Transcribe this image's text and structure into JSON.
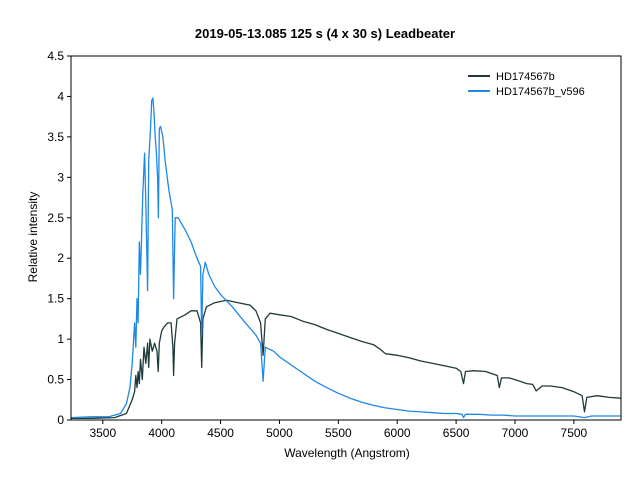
{
  "chart_data": {
    "type": "line",
    "title": "2019-05-13.085   125 s (4 x 30 s)   Leadbeater",
    "xlabel": "Wavelength (Angstrom)",
    "ylabel": "Relative intensity",
    "xlim": [
      3230,
      7900
    ],
    "ylim": [
      0,
      4.5
    ],
    "x_ticks": [
      "3500",
      "4000",
      "4500",
      "5000",
      "5500",
      "6000",
      "6500",
      "7000",
      "7500"
    ],
    "y_ticks": [
      "0",
      "0.5",
      "1",
      "1.5",
      "2",
      "2.5",
      "3",
      "3.5",
      "4",
      "4.5"
    ],
    "legend_position": "top-right",
    "grid": false,
    "series": [
      {
        "name": "HD174567b",
        "color": "#1f3a3a",
        "points": [
          [
            3230,
            0.02
          ],
          [
            3400,
            0.02
          ],
          [
            3600,
            0.03
          ],
          [
            3700,
            0.08
          ],
          [
            3750,
            0.25
          ],
          [
            3770,
            0.35
          ],
          [
            3780,
            0.55
          ],
          [
            3790,
            0.4
          ],
          [
            3800,
            0.6
          ],
          [
            3810,
            0.45
          ],
          [
            3820,
            0.75
          ],
          [
            3835,
            0.5
          ],
          [
            3850,
            0.9
          ],
          [
            3865,
            0.7
          ],
          [
            3880,
            0.95
          ],
          [
            3890,
            0.65
          ],
          [
            3900,
            1.0
          ],
          [
            3920,
            0.85
          ],
          [
            3940,
            0.95
          ],
          [
            3960,
            0.85
          ],
          [
            3970,
            0.6
          ],
          [
            3980,
            0.95
          ],
          [
            4000,
            1.1
          ],
          [
            4020,
            1.15
          ],
          [
            4050,
            1.2
          ],
          [
            4080,
            1.2
          ],
          [
            4095,
            0.9
          ],
          [
            4101,
            0.55
          ],
          [
            4110,
            0.95
          ],
          [
            4130,
            1.25
          ],
          [
            4200,
            1.3
          ],
          [
            4250,
            1.35
          ],
          [
            4300,
            1.35
          ],
          [
            4330,
            1.2
          ],
          [
            4340,
            0.65
          ],
          [
            4350,
            1.25
          ],
          [
            4380,
            1.4
          ],
          [
            4450,
            1.45
          ],
          [
            4550,
            1.48
          ],
          [
            4650,
            1.45
          ],
          [
            4750,
            1.42
          ],
          [
            4800,
            1.35
          ],
          [
            4840,
            1.2
          ],
          [
            4861,
            0.8
          ],
          [
            4880,
            1.25
          ],
          [
            4920,
            1.32
          ],
          [
            5000,
            1.3
          ],
          [
            5100,
            1.28
          ],
          [
            5200,
            1.22
          ],
          [
            5300,
            1.18
          ],
          [
            5400,
            1.12
          ],
          [
            5500,
            1.07
          ],
          [
            5600,
            1.02
          ],
          [
            5700,
            0.97
          ],
          [
            5800,
            0.93
          ],
          [
            5850,
            0.88
          ],
          [
            5900,
            0.82
          ],
          [
            6000,
            0.8
          ],
          [
            6100,
            0.77
          ],
          [
            6200,
            0.73
          ],
          [
            6300,
            0.7
          ],
          [
            6400,
            0.67
          ],
          [
            6500,
            0.64
          ],
          [
            6540,
            0.6
          ],
          [
            6563,
            0.45
          ],
          [
            6580,
            0.6
          ],
          [
            6650,
            0.61
          ],
          [
            6750,
            0.6
          ],
          [
            6850,
            0.55
          ],
          [
            6867,
            0.4
          ],
          [
            6885,
            0.52
          ],
          [
            6950,
            0.52
          ],
          [
            7000,
            0.5
          ],
          [
            7100,
            0.45
          ],
          [
            7150,
            0.44
          ],
          [
            7180,
            0.36
          ],
          [
            7230,
            0.42
          ],
          [
            7300,
            0.42
          ],
          [
            7400,
            0.4
          ],
          [
            7500,
            0.35
          ],
          [
            7570,
            0.3
          ],
          [
            7590,
            0.1
          ],
          [
            7610,
            0.28
          ],
          [
            7700,
            0.3
          ],
          [
            7800,
            0.28
          ],
          [
            7900,
            0.27
          ]
        ]
      },
      {
        "name": "HD174567b_v596",
        "color": "#1e88e5",
        "points": [
          [
            3230,
            0.03
          ],
          [
            3400,
            0.04
          ],
          [
            3550,
            0.04
          ],
          [
            3650,
            0.08
          ],
          [
            3700,
            0.2
          ],
          [
            3730,
            0.4
          ],
          [
            3750,
            0.7
          ],
          [
            3770,
            1.2
          ],
          [
            3780,
            0.9
          ],
          [
            3790,
            1.5
          ],
          [
            3800,
            1.2
          ],
          [
            3810,
            2.2
          ],
          [
            3820,
            1.8
          ],
          [
            3840,
            2.8
          ],
          [
            3855,
            3.3
          ],
          [
            3865,
            2.7
          ],
          [
            3880,
            1.6
          ],
          [
            3890,
            3.2
          ],
          [
            3905,
            3.6
          ],
          [
            3915,
            3.95
          ],
          [
            3925,
            3.98
          ],
          [
            3935,
            3.8
          ],
          [
            3945,
            3.5
          ],
          [
            3955,
            3.3
          ],
          [
            3965,
            3.0
          ],
          [
            3972,
            2.5
          ],
          [
            3980,
            3.6
          ],
          [
            3990,
            3.63
          ],
          [
            4010,
            3.5
          ],
          [
            4030,
            3.2
          ],
          [
            4060,
            2.85
          ],
          [
            4090,
            2.6
          ],
          [
            4101,
            1.5
          ],
          [
            4115,
            2.5
          ],
          [
            4140,
            2.5
          ],
          [
            4200,
            2.35
          ],
          [
            4250,
            2.2
          ],
          [
            4300,
            2.0
          ],
          [
            4330,
            1.9
          ],
          [
            4340,
            1.05
          ],
          [
            4350,
            1.8
          ],
          [
            4370,
            1.95
          ],
          [
            4400,
            1.8
          ],
          [
            4450,
            1.65
          ],
          [
            4500,
            1.55
          ],
          [
            4600,
            1.4
          ],
          [
            4700,
            1.22
          ],
          [
            4800,
            1.05
          ],
          [
            4840,
            0.95
          ],
          [
            4861,
            0.48
          ],
          [
            4880,
            0.9
          ],
          [
            4950,
            0.85
          ],
          [
            5000,
            0.78
          ],
          [
            5100,
            0.68
          ],
          [
            5200,
            0.58
          ],
          [
            5300,
            0.48
          ],
          [
            5400,
            0.4
          ],
          [
            5500,
            0.33
          ],
          [
            5600,
            0.27
          ],
          [
            5700,
            0.22
          ],
          [
            5800,
            0.18
          ],
          [
            5900,
            0.15
          ],
          [
            6000,
            0.13
          ],
          [
            6100,
            0.11
          ],
          [
            6200,
            0.1
          ],
          [
            6300,
            0.09
          ],
          [
            6400,
            0.08
          ],
          [
            6500,
            0.08
          ],
          [
            6550,
            0.07
          ],
          [
            6563,
            0.03
          ],
          [
            6580,
            0.07
          ],
          [
            6700,
            0.07
          ],
          [
            6800,
            0.06
          ],
          [
            6900,
            0.06
          ],
          [
            7000,
            0.05
          ],
          [
            7100,
            0.05
          ],
          [
            7200,
            0.05
          ],
          [
            7300,
            0.05
          ],
          [
            7400,
            0.05
          ],
          [
            7500,
            0.05
          ],
          [
            7590,
            0.03
          ],
          [
            7650,
            0.05
          ],
          [
            7800,
            0.05
          ],
          [
            7900,
            0.05
          ]
        ]
      }
    ]
  }
}
